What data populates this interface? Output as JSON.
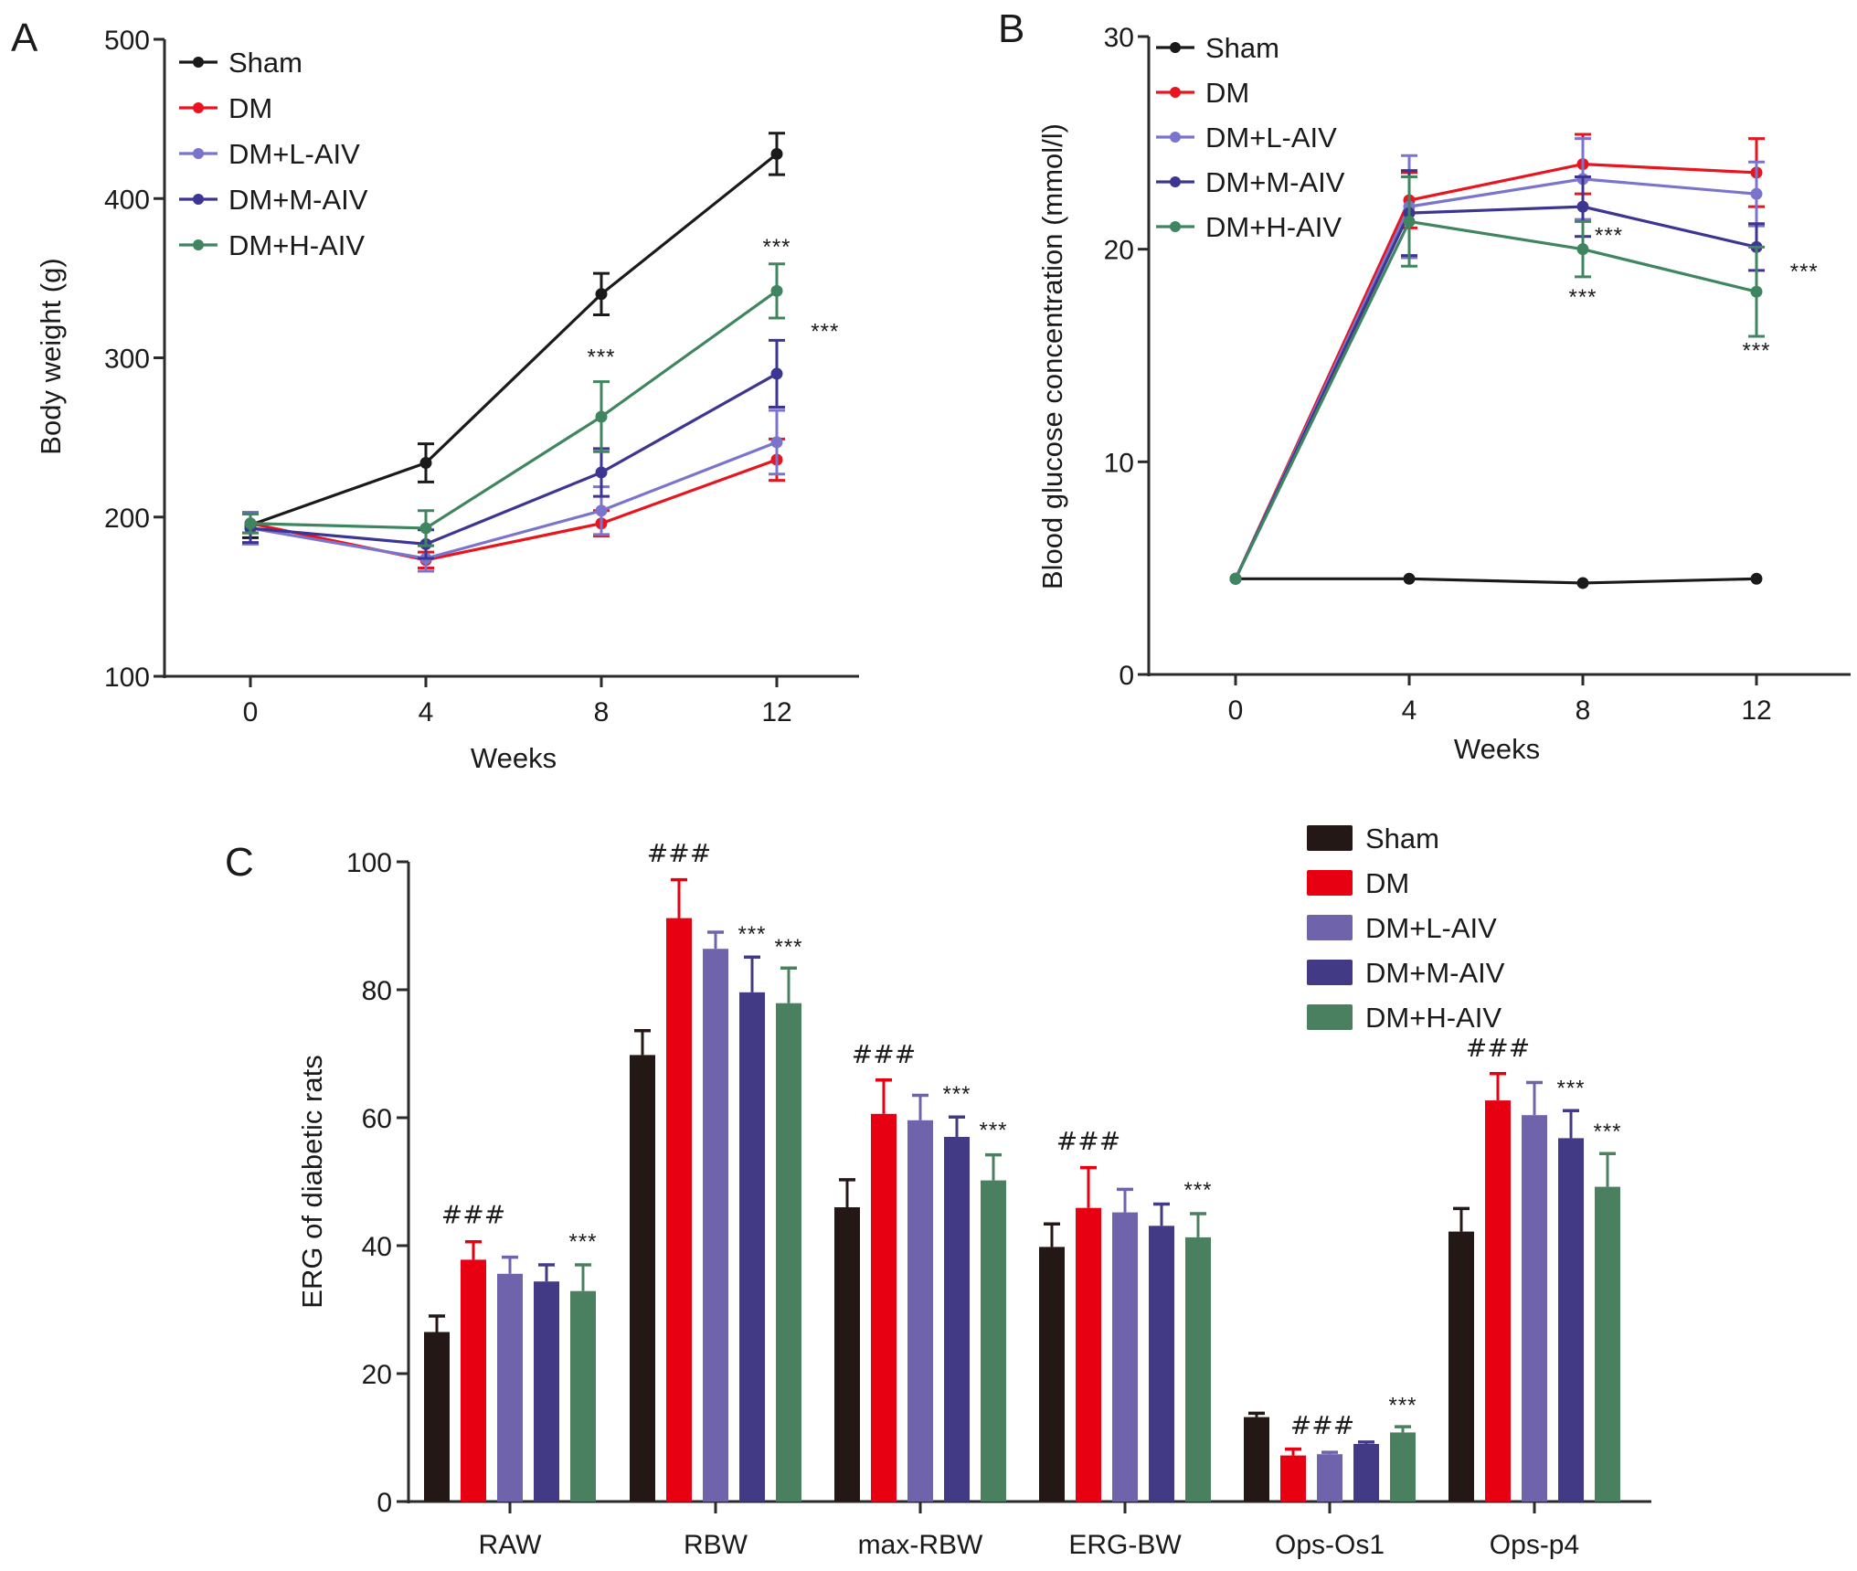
{
  "figure": {
    "colors": {
      "Sham": "#231815",
      "DM": "#e60012",
      "DM+L-AIV": "#6f63ab",
      "DM+M-AIV": "#433a86",
      "DM+H-AIV": "#4a8060",
      "axis": "#2a2a2a"
    },
    "line_colors": {
      "Sham": "#1a1a1a",
      "DM": "#e8141e",
      "DM+L-AIV": "#7b74cc",
      "DM+M-AIV": "#3d3592",
      "DM+H-AIV": "#3f8560"
    }
  },
  "chart_data": [
    {
      "panel": "A",
      "type": "line",
      "title": "",
      "xlabel": "Weeks",
      "ylabel": "Body weight (g)",
      "x": [
        0,
        4,
        8,
        12
      ],
      "xticks": [
        "0",
        "4",
        "8",
        "12"
      ],
      "ylim": [
        100,
        500
      ],
      "yticks": [
        "100",
        "200",
        "300",
        "400",
        "500"
      ],
      "ytick_values": [
        100,
        200,
        300,
        400,
        500
      ],
      "grid": false,
      "legend": [
        "Sham",
        "DM",
        "DM+L-AIV",
        "DM+M-AIV",
        "DM+H-AIV"
      ],
      "legend_position": "top-left",
      "series": [
        {
          "name": "Sham",
          "values": [
            195,
            234,
            340,
            428
          ],
          "errors": [
            8,
            12,
            13,
            13
          ]
        },
        {
          "name": "DM",
          "values": [
            196,
            173,
            196,
            236
          ],
          "errors": [
            6,
            5,
            8,
            13
          ]
        },
        {
          "name": "DM+L-AIV",
          "values": [
            193,
            174,
            204,
            247
          ],
          "errors": [
            10,
            8,
            15,
            20
          ]
        },
        {
          "name": "DM+M-AIV",
          "values": [
            193,
            183,
            228,
            290
          ],
          "errors": [
            9,
            9,
            15,
            21
          ]
        },
        {
          "name": "DM+H-AIV",
          "values": [
            196,
            193,
            263,
            342
          ],
          "errors": [
            6,
            11,
            22,
            17
          ]
        }
      ],
      "annotations": [
        {
          "text": "***",
          "x": 8,
          "y": 296,
          "anchor": "middle"
        },
        {
          "text": "***",
          "x": 12,
          "y": 365,
          "anchor": "middle"
        },
        {
          "text": "***",
          "x": 13.1,
          "y": 312,
          "anchor": "middle"
        }
      ]
    },
    {
      "panel": "B",
      "type": "line",
      "title": "",
      "xlabel": "Weeks",
      "ylabel": "Blood glucose concentration (mmol/l)",
      "x": [
        0,
        4,
        8,
        12
      ],
      "xticks": [
        "0",
        "4",
        "8",
        "12"
      ],
      "ylim": [
        0,
        30
      ],
      "yticks": [
        "0",
        "10",
        "20",
        "30"
      ],
      "ytick_values": [
        0,
        10,
        20,
        30
      ],
      "grid": false,
      "legend": [
        "Sham",
        "DM",
        "DM+L-AIV",
        "DM+M-AIV",
        "DM+H-AIV"
      ],
      "legend_position": "top-left",
      "series": [
        {
          "name": "Sham",
          "values": [
            4.5,
            4.5,
            4.3,
            4.5
          ],
          "errors": [
            0,
            0,
            0,
            0
          ]
        },
        {
          "name": "DM",
          "values": [
            4.5,
            22.3,
            24.0,
            23.6
          ],
          "errors": [
            0,
            1.3,
            1.4,
            1.6
          ]
        },
        {
          "name": "DM+L-AIV",
          "values": [
            4.5,
            22.0,
            23.3,
            22.6
          ],
          "errors": [
            0,
            2.4,
            1.9,
            1.5
          ]
        },
        {
          "name": "DM+M-AIV",
          "values": [
            4.5,
            21.7,
            22.0,
            20.1
          ],
          "errors": [
            0,
            2.0,
            1.4,
            1.1
          ]
        },
        {
          "name": "DM+H-AIV",
          "values": [
            4.5,
            21.3,
            20.0,
            18.0
          ],
          "errors": [
            0,
            2.1,
            1.3,
            2.1
          ]
        }
      ],
      "annotations": [
        {
          "text": "***",
          "x": 8.6,
          "y": 20.3,
          "anchor": "middle"
        },
        {
          "text": "***",
          "x": 8,
          "y": 17.4,
          "anchor": "middle"
        },
        {
          "text": "***",
          "x": 13.1,
          "y": 18.6,
          "anchor": "middle"
        },
        {
          "text": "***",
          "x": 12,
          "y": 14.9,
          "anchor": "middle"
        }
      ]
    },
    {
      "panel": "C",
      "type": "bar",
      "title": "",
      "xlabel": "",
      "ylabel": "ERG of diabetic rats",
      "categories": [
        "RAW",
        "RBW",
        "max-RBW",
        "ERG-BW",
        "Ops-Os1",
        "Ops-p4"
      ],
      "ylim": [
        0,
        100
      ],
      "yticks": [
        "0",
        "20",
        "40",
        "60",
        "80",
        "100"
      ],
      "ytick_values": [
        0,
        20,
        40,
        60,
        80,
        100
      ],
      "grid": false,
      "legend": [
        "Sham",
        "DM",
        "DM+L-AIV",
        "DM+M-AIV",
        "DM+H-AIV"
      ],
      "legend_position": "top-right",
      "series": [
        {
          "name": "Sham",
          "values": [
            26.5,
            69.8,
            46.0,
            39.8,
            13.2,
            42.2
          ],
          "errors": [
            2.5,
            3.8,
            4.3,
            3.6,
            0.6,
            3.6
          ]
        },
        {
          "name": "DM",
          "values": [
            37.8,
            91.2,
            60.6,
            45.9,
            7.2,
            62.7
          ],
          "errors": [
            2.8,
            6.0,
            5.3,
            6.3,
            1.0,
            4.2
          ]
        },
        {
          "name": "DM+L-AIV",
          "values": [
            35.6,
            86.4,
            59.6,
            45.2,
            7.4,
            60.4
          ],
          "errors": [
            2.6,
            2.6,
            3.9,
            3.6,
            0.3,
            5.1
          ]
        },
        {
          "name": "DM+M-AIV",
          "values": [
            34.4,
            79.6,
            57.0,
            43.1,
            9.0,
            56.8
          ],
          "errors": [
            2.6,
            5.5,
            3.1,
            3.4,
            0.3,
            4.3
          ]
        },
        {
          "name": "DM+H-AIV",
          "values": [
            32.9,
            77.9,
            50.2,
            41.3,
            10.8,
            49.2
          ],
          "errors": [
            4.1,
            5.5,
            4.0,
            3.7,
            0.9,
            5.2
          ]
        }
      ],
      "annotations": [
        {
          "text": "###",
          "category": 0,
          "series": 1,
          "y": 43.5
        },
        {
          "text": "***",
          "category": 0,
          "series": 4,
          "y": 39.5
        },
        {
          "text": "###",
          "category": 1,
          "series": 1,
          "y": 100
        },
        {
          "text": "***",
          "category": 1,
          "series": 3,
          "y": 87.6
        },
        {
          "text": "***",
          "category": 1,
          "series": 4,
          "y": 85.6
        },
        {
          "text": "###",
          "category": 2,
          "series": 1,
          "y": 68.6
        },
        {
          "text": "***",
          "category": 2,
          "series": 3,
          "y": 62.6
        },
        {
          "text": "***",
          "category": 2,
          "series": 4,
          "y": 56.9
        },
        {
          "text": "###",
          "category": 3,
          "series": 1,
          "y": 55.0
        },
        {
          "text": "***",
          "category": 3,
          "series": 4,
          "y": 47.6
        },
        {
          "text": "###",
          "category": 4,
          "series": 1.8,
          "y": 10.6
        },
        {
          "text": "***",
          "category": 4,
          "series": 4,
          "y": 13.9
        },
        {
          "text": "###",
          "category": 5,
          "series": 1,
          "y": 69.6
        },
        {
          "text": "***",
          "category": 5,
          "series": 3,
          "y": 63.5
        },
        {
          "text": "***",
          "category": 5,
          "series": 4,
          "y": 56.7
        }
      ]
    }
  ],
  "panel_letters": [
    "A",
    "B",
    "C"
  ]
}
